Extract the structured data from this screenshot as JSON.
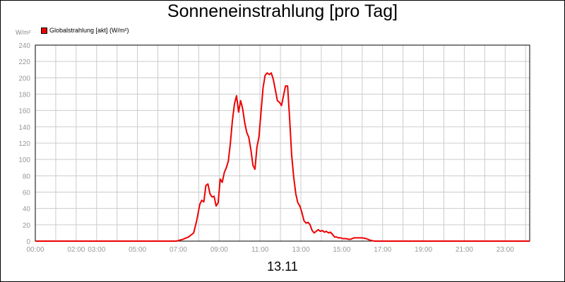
{
  "chart_data": {
    "type": "line",
    "title": "Sonneneinstrahlung [pro Tag]",
    "date_label": "13.11",
    "y_unit": "W/m²",
    "ylim": [
      0,
      240
    ],
    "yticks": [
      0,
      20,
      40,
      60,
      80,
      100,
      120,
      140,
      160,
      180,
      200,
      220,
      240
    ],
    "xlim_hours": [
      0,
      24.2
    ],
    "xticks": [
      {
        "hour": 0,
        "label": "00:00"
      },
      {
        "hour": 2,
        "label": "02:00"
      },
      {
        "hour": 3,
        "label": "03:00"
      },
      {
        "hour": 5,
        "label": "05:00"
      },
      {
        "hour": 7,
        "label": "07:00"
      },
      {
        "hour": 9,
        "label": "09:00"
      },
      {
        "hour": 11,
        "label": "11:00"
      },
      {
        "hour": 13,
        "label": "13:00"
      },
      {
        "hour": 15,
        "label": "15:00"
      },
      {
        "hour": 17,
        "label": "17:00"
      },
      {
        "hour": 19,
        "label": "19:00"
      },
      {
        "hour": 21,
        "label": "21:00"
      },
      {
        "hour": 23,
        "label": "23:00"
      }
    ],
    "grid": true,
    "legend_position": "top-left",
    "series": [
      {
        "name": "Globalstrahlung [akt] (W/m²)",
        "color": "#ee0000",
        "x": [
          0,
          6.9,
          7.2,
          7.5,
          7.75,
          7.9,
          8.05,
          8.15,
          8.25,
          8.35,
          8.45,
          8.55,
          8.65,
          8.75,
          8.85,
          8.95,
          9.05,
          9.15,
          9.25,
          9.35,
          9.45,
          9.55,
          9.65,
          9.75,
          9.85,
          9.95,
          10.05,
          10.15,
          10.25,
          10.35,
          10.45,
          10.55,
          10.65,
          10.75,
          10.85,
          10.95,
          11.05,
          11.15,
          11.25,
          11.35,
          11.45,
          11.55,
          11.65,
          11.75,
          11.85,
          11.95,
          12.05,
          12.15,
          12.25,
          12.35,
          12.45,
          12.55,
          12.65,
          12.75,
          12.85,
          12.95,
          13.05,
          13.15,
          13.25,
          13.35,
          13.45,
          13.55,
          13.65,
          13.75,
          13.85,
          13.95,
          14.05,
          14.15,
          14.25,
          14.35,
          14.45,
          14.55,
          14.65,
          14.75,
          14.85,
          14.95,
          15.05,
          15.2,
          15.4,
          15.6,
          15.8,
          16.0,
          16.2,
          16.4,
          16.6,
          16.8,
          17.0,
          17.2,
          17.5,
          24.2
        ],
        "values": [
          0,
          0,
          2,
          5,
          10,
          25,
          45,
          50,
          48,
          68,
          70,
          58,
          54,
          55,
          43,
          47,
          76,
          72,
          84,
          90,
          98,
          120,
          148,
          168,
          178,
          158,
          172,
          162,
          145,
          133,
          127,
          112,
          93,
          88,
          115,
          128,
          158,
          188,
          203,
          206,
          204,
          206,
          198,
          185,
          172,
          170,
          166,
          178,
          190,
          190,
          150,
          105,
          78,
          58,
          47,
          43,
          35,
          25,
          22,
          23,
          20,
          13,
          10,
          12,
          14,
          12,
          13,
          11,
          12,
          10,
          11,
          8,
          5,
          5,
          4,
          4,
          3,
          3,
          2,
          4,
          4,
          4,
          3,
          1,
          0,
          0,
          0,
          0,
          0,
          0
        ]
      }
    ]
  }
}
